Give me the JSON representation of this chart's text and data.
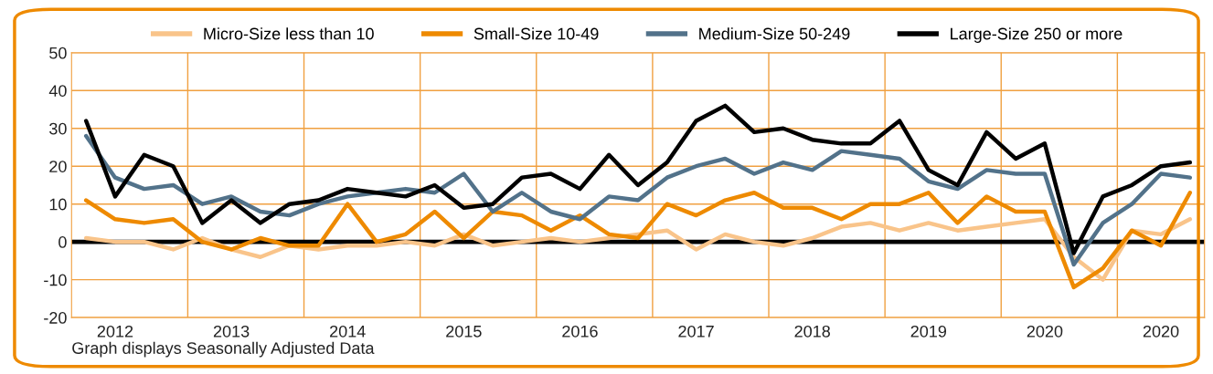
{
  "chart_data": {
    "type": "line",
    "categories": [
      null,
      "2012",
      null,
      null,
      null,
      "2013",
      null,
      null,
      null,
      "2014",
      null,
      null,
      null,
      "2015",
      null,
      null,
      null,
      "2016",
      null,
      null,
      null,
      "2017",
      null,
      null,
      null,
      "2018",
      null,
      null,
      null,
      "2019",
      null,
      null,
      null,
      "2020",
      null,
      null,
      null,
      "2020",
      null
    ],
    "series": [
      {
        "name": "Micro-Size less than 10",
        "color": "#f9c48a",
        "values": [
          1,
          0,
          0,
          -2,
          1,
          -2,
          -4,
          -1,
          -2,
          -1,
          -1,
          0,
          -1,
          2,
          -1,
          0,
          1,
          0,
          1,
          2,
          3,
          -2,
          2,
          0,
          -1,
          1,
          4,
          5,
          3,
          5,
          3,
          4,
          5,
          6,
          -4,
          -10,
          3,
          2,
          6
        ]
      },
      {
        "name": "Small-Size 10-49",
        "color": "#ee8a00",
        "values": [
          11,
          6,
          5,
          6,
          0,
          -2,
          1,
          -1,
          -1,
          10,
          0,
          2,
          8,
          1,
          8,
          7,
          3,
          7,
          2,
          1,
          10,
          7,
          11,
          13,
          9,
          9,
          6,
          10,
          10,
          13,
          5,
          12,
          8,
          8,
          -12,
          -7,
          3,
          -1,
          13
        ]
      },
      {
        "name": "Medium-Size 50-249",
        "color": "#52728a",
        "values": [
          28,
          17,
          14,
          15,
          10,
          12,
          8,
          7,
          10,
          12,
          13,
          14,
          13,
          18,
          8,
          13,
          8,
          6,
          12,
          11,
          17,
          20,
          22,
          18,
          21,
          19,
          24,
          23,
          22,
          16,
          14,
          19,
          18,
          18,
          -6,
          5,
          10,
          18,
          17
        ]
      },
      {
        "name": "Large-Size 250 or more",
        "color": "#000000",
        "values": [
          32,
          12,
          23,
          20,
          5,
          11,
          5,
          10,
          11,
          14,
          13,
          12,
          15,
          9,
          10,
          17,
          18,
          14,
          23,
          15,
          21,
          32,
          36,
          29,
          30,
          27,
          26,
          26,
          32,
          19,
          15,
          29,
          22,
          26,
          -3,
          12,
          15,
          20,
          21
        ]
      }
    ],
    "ylim": [
      -20,
      50
    ],
    "yticks": [
      -20,
      -10,
      0,
      10,
      20,
      30,
      40,
      50
    ],
    "grid": true,
    "legend": "top",
    "marker": "none",
    "line_style": "solid",
    "ref_lines": [
      {
        "axis": "y",
        "value": 0,
        "label": null,
        "color": "#000000"
      }
    ],
    "annotations": [
      "Graph displays Seasonally Adjusted Data"
    ]
  }
}
